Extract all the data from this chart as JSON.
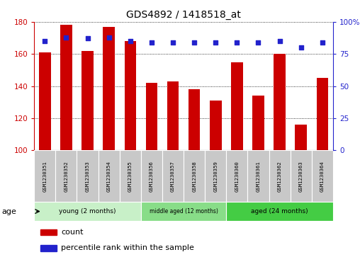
{
  "title": "GDS4892 / 1418518_at",
  "samples": [
    "GSM1230351",
    "GSM1230352",
    "GSM1230353",
    "GSM1230354",
    "GSM1230355",
    "GSM1230356",
    "GSM1230357",
    "GSM1230358",
    "GSM1230359",
    "GSM1230360",
    "GSM1230361",
    "GSM1230362",
    "GSM1230363",
    "GSM1230364"
  ],
  "counts": [
    161,
    178,
    162,
    177,
    168,
    142,
    143,
    138,
    131,
    155,
    134,
    160,
    116,
    145
  ],
  "percentile": [
    85,
    88,
    87,
    88,
    85,
    84,
    84,
    84,
    84,
    84,
    84,
    85,
    80,
    84
  ],
  "ylim_left": [
    100,
    180
  ],
  "ylim_right": [
    0,
    100
  ],
  "yticks_left": [
    100,
    120,
    140,
    160,
    180
  ],
  "yticks_right": [
    0,
    25,
    50,
    75,
    100
  ],
  "bar_color": "#cc0000",
  "dot_color": "#2222cc",
  "group_colors": [
    "#c8f0c8",
    "#88dd88",
    "#44cc44"
  ],
  "groups": [
    {
      "label": "young (2 months)",
      "start": 0,
      "end": 5
    },
    {
      "label": "middle aged (12 months)",
      "start": 5,
      "end": 9
    },
    {
      "label": "aged (24 months)",
      "start": 9,
      "end": 14
    }
  ],
  "age_label": "age",
  "legend_count": "count",
  "legend_percentile": "percentile rank within the sample",
  "sample_bg": "#c8c8c8",
  "plot_bg": "#ffffff"
}
